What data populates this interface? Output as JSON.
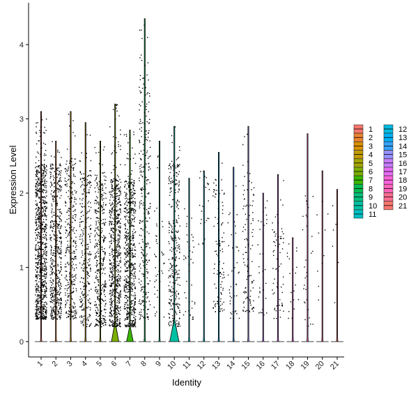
{
  "chart_data": {
    "type": "violin",
    "xlabel": "Identity",
    "ylabel": "Expression Level",
    "ylim": [
      -0.2,
      4.4
    ],
    "y_ticks": [
      0,
      1,
      2,
      3,
      4
    ],
    "grid": false,
    "legend_placement": "right",
    "categories": [
      "1",
      "2",
      "3",
      "4",
      "5",
      "6",
      "7",
      "8",
      "9",
      "10",
      "11",
      "12",
      "13",
      "14",
      "15",
      "16",
      "17",
      "18",
      "19",
      "20",
      "21"
    ],
    "series": [
      {
        "name": "1",
        "color": "#F8766D",
        "max": 3.1,
        "density": 0.9,
        "n": 900,
        "bulk_low": 0.3,
        "bulk_high": 2.4
      },
      {
        "name": "2",
        "color": "#EA8331",
        "max": 2.7,
        "density": 0.7,
        "n": 500,
        "bulk_low": 0.3,
        "bulk_high": 2.4
      },
      {
        "name": "3",
        "color": "#D89000",
        "max": 3.1,
        "density": 0.6,
        "n": 330,
        "bulk_low": 0.3,
        "bulk_high": 2.5
      },
      {
        "name": "4",
        "color": "#C09B00",
        "max": 2.95,
        "density": 0.5,
        "n": 270,
        "bulk_low": 0.2,
        "bulk_high": 2.3
      },
      {
        "name": "5",
        "color": "#A3A500",
        "max": 2.7,
        "density": 0.6,
        "n": 380,
        "bulk_low": 0.2,
        "bulk_high": 2.3
      },
      {
        "name": "6",
        "color": "#7CAE00",
        "max": 3.2,
        "density": 0.95,
        "n": 650,
        "bulk_low": 0.2,
        "bulk_high": 2.2,
        "violin_width": 0.6,
        "violin_height": 0.25
      },
      {
        "name": "7",
        "color": "#39B600",
        "max": 2.85,
        "density": 0.9,
        "n": 620,
        "bulk_low": 0.2,
        "bulk_high": 2.2,
        "violin_width": 0.55,
        "violin_height": 0.2
      },
      {
        "name": "8",
        "color": "#00BB4E",
        "max": 4.35,
        "density": 0.6,
        "n": 280,
        "bulk_low": 0.3,
        "bulk_high": 3.6
      },
      {
        "name": "9",
        "color": "#00BF7D",
        "max": 2.7,
        "density": 0.15,
        "n": 45,
        "bulk_low": 0.3,
        "bulk_high": 1.8
      },
      {
        "name": "10",
        "color": "#00C1A3",
        "max": 2.9,
        "density": 0.5,
        "n": 300,
        "bulk_low": 0.2,
        "bulk_high": 2.4,
        "violin_width": 0.75,
        "violin_height": 0.3
      },
      {
        "name": "11",
        "color": "#00BFC4",
        "max": 2.2,
        "density": 0.15,
        "n": 40,
        "bulk_low": 0.3,
        "bulk_high": 1.7
      },
      {
        "name": "12",
        "color": "#00BAE0",
        "max": 2.3,
        "density": 0.2,
        "n": 25,
        "bulk_low": 1.3,
        "bulk_high": 2.3
      },
      {
        "name": "13",
        "color": "#00B0F6",
        "max": 2.55,
        "density": 0.25,
        "n": 110,
        "bulk_low": 0.4,
        "bulk_high": 2.2
      },
      {
        "name": "14",
        "color": "#35A2FF",
        "max": 2.35,
        "density": 0.2,
        "n": 40,
        "bulk_low": 0.3,
        "bulk_high": 2.0
      },
      {
        "name": "15",
        "color": "#9590FF",
        "max": 2.9,
        "density": 0.3,
        "n": 110,
        "bulk_low": 0.4,
        "bulk_high": 2.3
      },
      {
        "name": "16",
        "color": "#C77CFF",
        "max": 2.0,
        "density": 0.15,
        "n": 30,
        "bulk_low": 0.3,
        "bulk_high": 1.9
      },
      {
        "name": "17",
        "color": "#E76BF3",
        "max": 2.25,
        "density": 0.25,
        "n": 70,
        "bulk_low": 0.3,
        "bulk_high": 1.6
      },
      {
        "name": "18",
        "color": "#FA62DB",
        "max": 1.4,
        "density": 0.15,
        "n": 20,
        "bulk_low": 0.3,
        "bulk_high": 1.4
      },
      {
        "name": "19",
        "color": "#FF62BC",
        "max": 2.8,
        "density": 0.15,
        "n": 30,
        "bulk_low": 0.2,
        "bulk_high": 2.0
      },
      {
        "name": "20",
        "color": "#FF6C91",
        "max": 2.3,
        "density": 0.1,
        "n": 10,
        "bulk_low": 0.5,
        "bulk_high": 2.3
      },
      {
        "name": "21",
        "color": "#F8766D",
        "max": 2.05,
        "density": 0.1,
        "n": 6,
        "bulk_low": 0.3,
        "bulk_high": 2.0
      }
    ]
  }
}
